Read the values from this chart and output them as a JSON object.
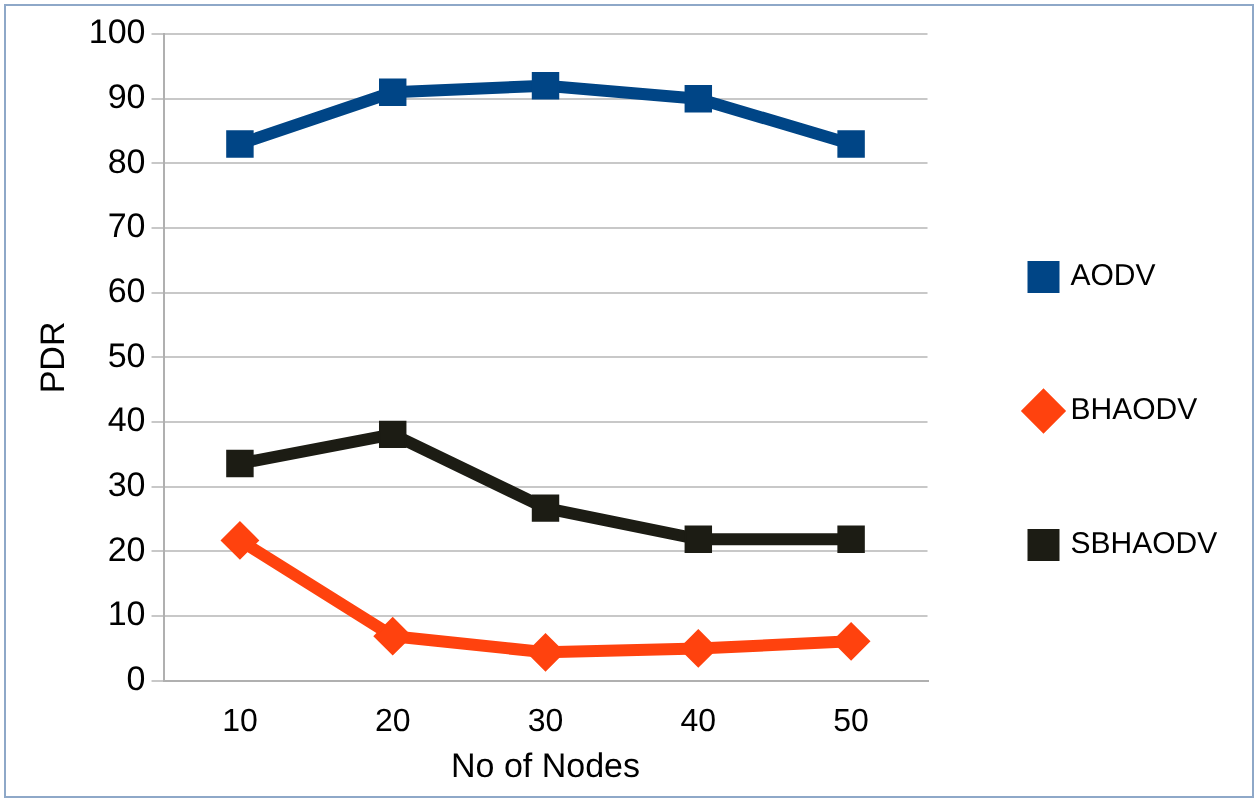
{
  "chart_data": {
    "type": "line",
    "xlabel": "No of Nodes",
    "ylabel": "PDR",
    "categories": [
      "10",
      "20",
      "30",
      "40",
      "50"
    ],
    "series": [
      {
        "name": "AODV",
        "color": "#004586",
        "marker": "square",
        "values": [
          83,
          91,
          92,
          90,
          83
        ]
      },
      {
        "name": "BHAODV",
        "color": "#ff420e",
        "marker": "diamond",
        "values": [
          21.7,
          6.9,
          4.4,
          5,
          6.1
        ]
      },
      {
        "name": "SBHAODV",
        "color": "#1c1c14",
        "marker": "square",
        "values": [
          33.6,
          38.1,
          26.7,
          21.9,
          21.9
        ]
      }
    ],
    "ylim": [
      0,
      100
    ],
    "yticks": [
      0,
      10,
      20,
      30,
      40,
      50,
      60,
      70,
      80,
      90,
      100
    ],
    "grid": "y",
    "legend": "right",
    "line_style": "solid"
  }
}
